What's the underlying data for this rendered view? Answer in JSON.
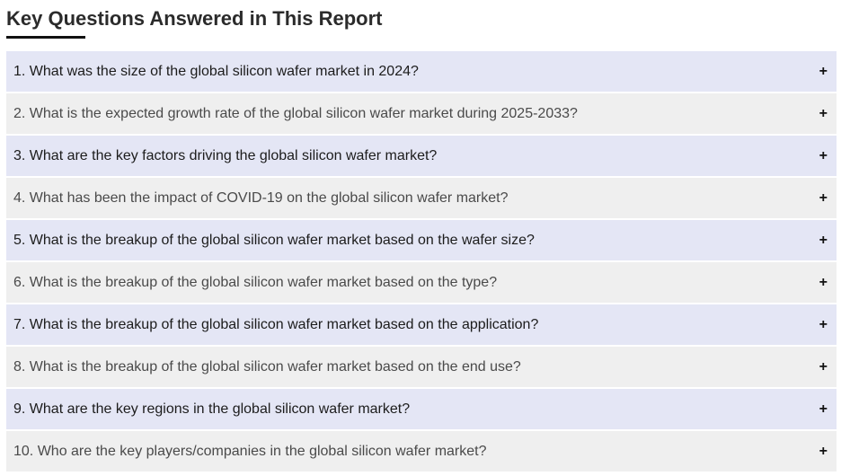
{
  "section": {
    "title": "Key Questions Answered in This Report"
  },
  "faq": {
    "expand_icon": "plus-icon",
    "expand_glyph": "+",
    "colors": {
      "row_odd": "#e4e6f5",
      "row_even": "#efefef"
    },
    "items": [
      {
        "question": "1. What was the size of the global silicon wafer market in 2024?"
      },
      {
        "question": "2. What is the expected growth rate of the global silicon wafer market during 2025-2033?"
      },
      {
        "question": "3. What are the key factors driving the global silicon wafer market?"
      },
      {
        "question": "4. What has been the impact of COVID-19 on the global silicon wafer market?"
      },
      {
        "question": "5. What is the breakup of the global silicon wafer market based on the wafer size?"
      },
      {
        "question": "6. What is the breakup of the global silicon wafer market based on the type?"
      },
      {
        "question": "7. What is the breakup of the global silicon wafer market based on the application?"
      },
      {
        "question": "8. What is the breakup of the global silicon wafer market based on the end use?"
      },
      {
        "question": "9. What are the key regions in the global silicon wafer market?"
      },
      {
        "question": "10. Who are the key players/companies in the global silicon wafer market?"
      }
    ]
  }
}
